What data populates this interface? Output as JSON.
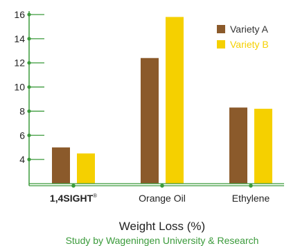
{
  "chart_data": {
    "type": "bar",
    "categories": [
      "1,4SIGHT",
      "Orange Oil",
      "Ethylene"
    ],
    "category_marks": [
      "®",
      "",
      ""
    ],
    "series": [
      {
        "name": "Variety A",
        "values": [
          5.0,
          12.4,
          8.3
        ],
        "color": "#8B5A2B"
      },
      {
        "name": "Variety B",
        "values": [
          4.5,
          15.8,
          8.2
        ],
        "color": "#F5D000"
      }
    ],
    "yticks": [
      4,
      6,
      8,
      10,
      12,
      14,
      16
    ],
    "ylim": [
      2,
      16
    ],
    "xlabel": "Weight Loss (%)",
    "subtitle": "Study by Wageningen University & Research",
    "grid": false,
    "legend_placement": "top-right",
    "axis_color": "#3A9A3A",
    "subtitle_color": "#3A9A3A"
  }
}
